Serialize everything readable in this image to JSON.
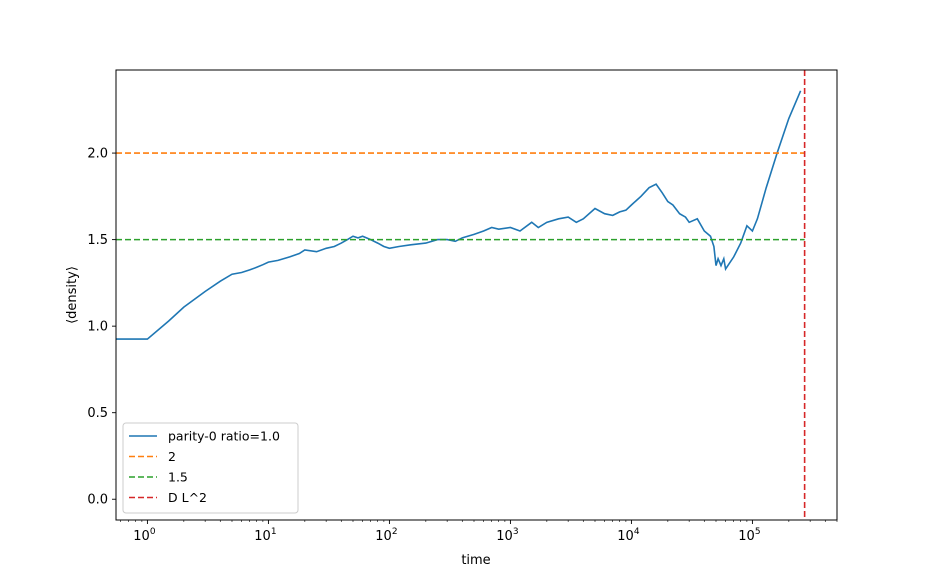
{
  "chart_data": {
    "type": "line",
    "title": "",
    "xlabel": "time",
    "ylabel": "⟨density⟩",
    "xscale": "log",
    "xlim": [
      0.55,
      500000
    ],
    "ylim": [
      -0.12,
      2.48
    ],
    "x_ticks": [
      {
        "value": 1,
        "base": "10",
        "exp": "0"
      },
      {
        "value": 10,
        "base": "10",
        "exp": "1"
      },
      {
        "value": 100,
        "base": "10",
        "exp": "2"
      },
      {
        "value": 1000,
        "base": "10",
        "exp": "3"
      },
      {
        "value": 10000,
        "base": "10",
        "exp": "4"
      },
      {
        "value": 100000,
        "base": "10",
        "exp": "5"
      }
    ],
    "y_ticks": [
      {
        "value": 0.0,
        "label": "0.0"
      },
      {
        "value": 0.5,
        "label": "0.5"
      },
      {
        "value": 1.0,
        "label": "1.0"
      },
      {
        "value": 1.5,
        "label": "1.5"
      },
      {
        "value": 2.0,
        "label": "2.0"
      }
    ],
    "grid": false,
    "legend_position": "lower-left",
    "series": [
      {
        "name": "parity-0 ratio=1.0",
        "color": "#1f77b4",
        "style": "solid",
        "x": [
          0.55,
          1,
          1.5,
          2,
          3,
          4,
          5,
          6,
          7,
          8,
          9,
          10,
          12,
          15,
          18,
          20,
          25,
          30,
          35,
          40,
          45,
          50,
          55,
          60,
          70,
          80,
          90,
          100,
          120,
          150,
          200,
          250,
          300,
          350,
          400,
          500,
          600,
          700,
          800,
          1000,
          1200,
          1500,
          1700,
          2000,
          2500,
          3000,
          3500,
          4000,
          5000,
          6000,
          7000,
          8000,
          9000,
          10000,
          12000,
          14000,
          16000,
          18000,
          20000,
          22000,
          25000,
          28000,
          30000,
          35000,
          40000,
          45000,
          48000,
          50000,
          52000,
          55000,
          58000,
          60000,
          70000,
          80000,
          90000,
          100000,
          110000,
          130000,
          160000,
          200000,
          250000
        ],
        "y": [
          0.925,
          0.925,
          1.03,
          1.11,
          1.2,
          1.26,
          1.3,
          1.31,
          1.325,
          1.34,
          1.355,
          1.37,
          1.38,
          1.4,
          1.42,
          1.44,
          1.43,
          1.45,
          1.46,
          1.48,
          1.5,
          1.52,
          1.51,
          1.52,
          1.5,
          1.48,
          1.46,
          1.45,
          1.46,
          1.47,
          1.48,
          1.5,
          1.5,
          1.49,
          1.51,
          1.53,
          1.55,
          1.57,
          1.56,
          1.57,
          1.55,
          1.6,
          1.57,
          1.6,
          1.62,
          1.63,
          1.6,
          1.62,
          1.68,
          1.65,
          1.64,
          1.66,
          1.67,
          1.7,
          1.75,
          1.8,
          1.82,
          1.77,
          1.72,
          1.7,
          1.65,
          1.63,
          1.6,
          1.62,
          1.55,
          1.52,
          1.46,
          1.35,
          1.39,
          1.35,
          1.39,
          1.33,
          1.4,
          1.48,
          1.58,
          1.55,
          1.62,
          1.8,
          2.0,
          2.2,
          2.36
        ]
      },
      {
        "name": "2",
        "color": "#ff7f0e",
        "style": "dashed",
        "hline": 2.0
      },
      {
        "name": "1.5",
        "color": "#2ca02c",
        "style": "dashed",
        "hline": 1.5
      },
      {
        "name": "D L^2",
        "color": "#d62728",
        "style": "dashed",
        "vline": 270000
      }
    ]
  }
}
